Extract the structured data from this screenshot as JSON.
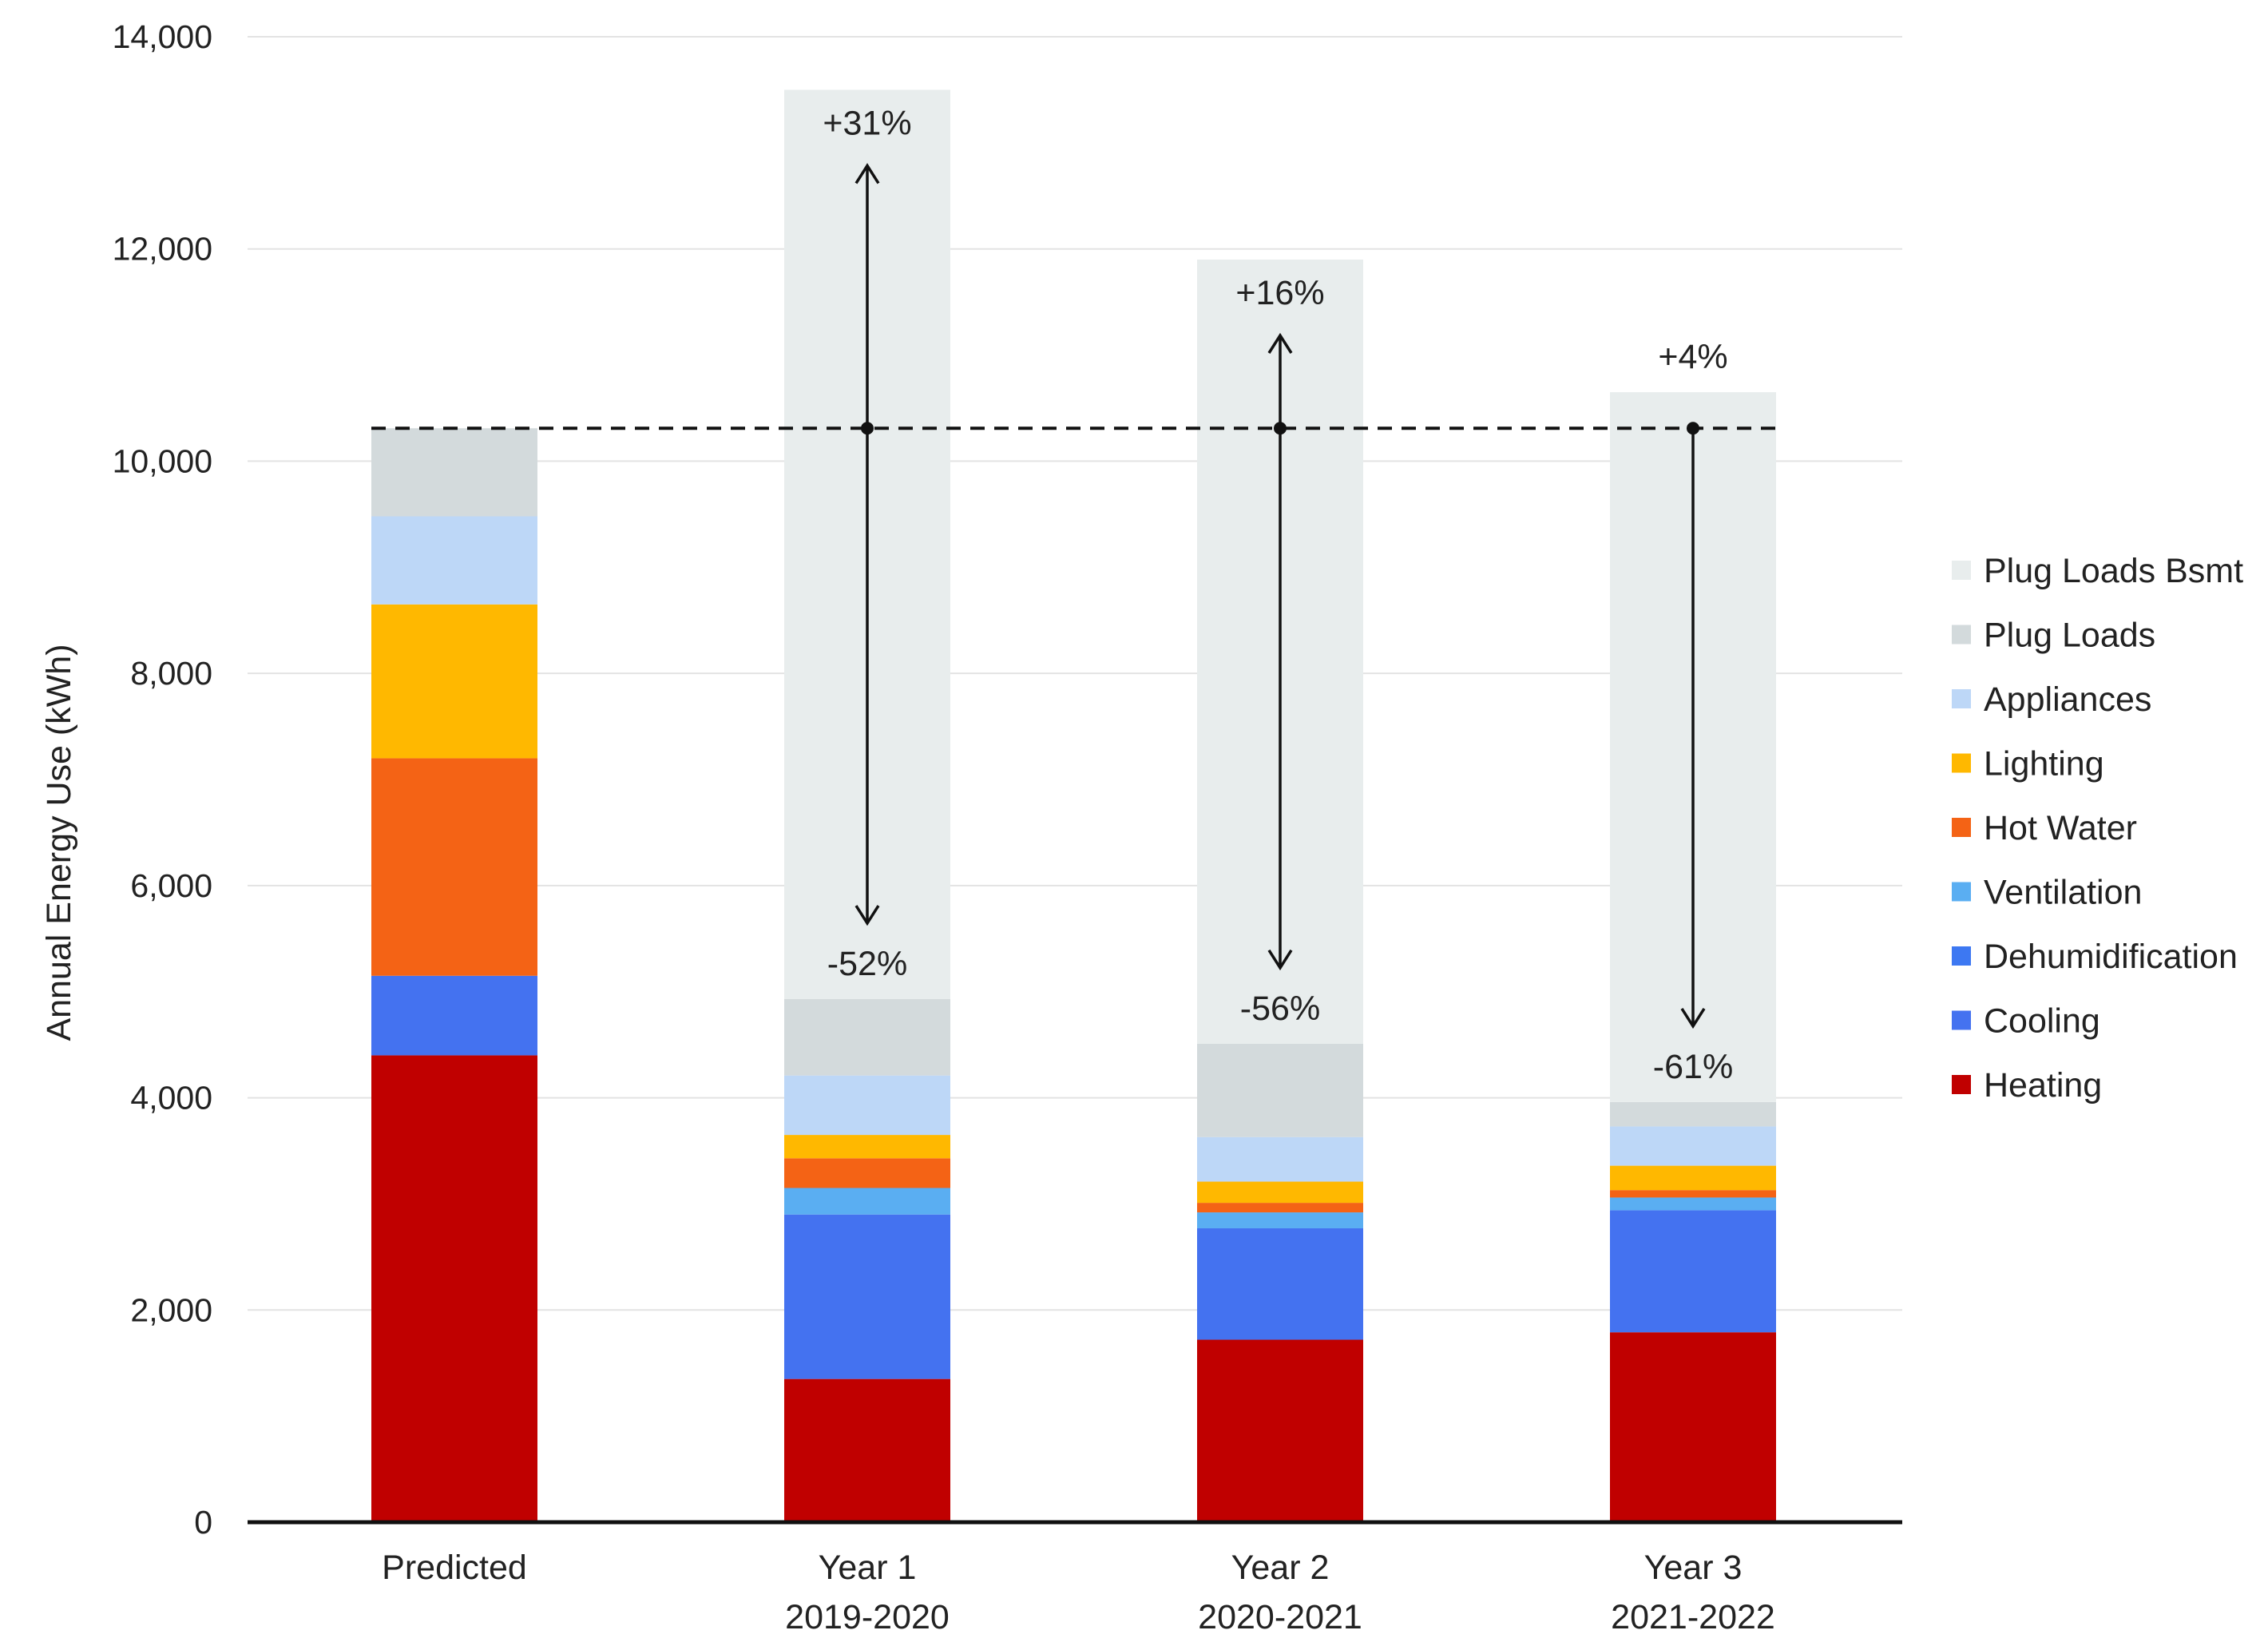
{
  "chart_data": {
    "type": "bar",
    "stacked": true,
    "ylabel": "Annual Energy Use (kWh)",
    "xlabel": "",
    "ylim": [
      0,
      14000
    ],
    "yticks": [
      0,
      2000,
      4000,
      6000,
      8000,
      10000,
      12000,
      14000
    ],
    "ytick_labels": [
      "0",
      "2,000",
      "4,000",
      "6,000",
      "8,000",
      "10,000",
      "12,000",
      "14,000"
    ],
    "grid": true,
    "legend_position": "right",
    "categories": [
      {
        "line1": "Predicted",
        "line2": ""
      },
      {
        "line1": "Year 1",
        "line2": "2019-2020"
      },
      {
        "line1": "Year 2",
        "line2": "2020-2021"
      },
      {
        "line1": "Year 3",
        "line2": "2021-2022"
      }
    ],
    "series": [
      {
        "name": "Heating",
        "color": "#C00000",
        "values": [
          4400,
          1350,
          1720,
          1790
        ]
      },
      {
        "name": "Cooling",
        "color": "#4472F0",
        "values": [
          750,
          1550,
          1050,
          1150
        ]
      },
      {
        "name": "Dehumidification",
        "color": "#3D78F2",
        "values": [
          0,
          0,
          0,
          0
        ]
      },
      {
        "name": "Ventilation",
        "color": "#5AAEF2",
        "values": [
          0,
          250,
          150,
          120
        ]
      },
      {
        "name": "Hot Water",
        "color": "#F46315",
        "values": [
          2050,
          280,
          90,
          70
        ]
      },
      {
        "name": "Lighting",
        "color": "#FFB800",
        "values": [
          1450,
          220,
          200,
          230
        ]
      },
      {
        "name": "Appliances",
        "color": "#BDD7F7",
        "values": [
          830,
          560,
          420,
          370
        ]
      },
      {
        "name": "Plug Loads",
        "color": "#D3DADC",
        "values": [
          830,
          720,
          880,
          230
        ]
      },
      {
        "name": "Plug Loads Bsmt",
        "color": "#E8EDED",
        "values": [
          0,
          8570,
          7390,
          6690
        ]
      }
    ],
    "legend_order": [
      "Plug Loads Bsmt",
      "Plug Loads",
      "Appliances",
      "Lighting",
      "Hot Water",
      "Ventilation",
      "Dehumidification",
      "Cooling",
      "Heating"
    ],
    "reference_line": {
      "value": 10310,
      "style": "dashed"
    },
    "annotations": [
      {
        "category_index": 1,
        "up_label": "+31%",
        "down_label": "-52%"
      },
      {
        "category_index": 2,
        "up_label": "+16%",
        "down_label": "-56%"
      },
      {
        "category_index": 3,
        "up_label": "+4%",
        "down_label": "-61%"
      }
    ]
  }
}
